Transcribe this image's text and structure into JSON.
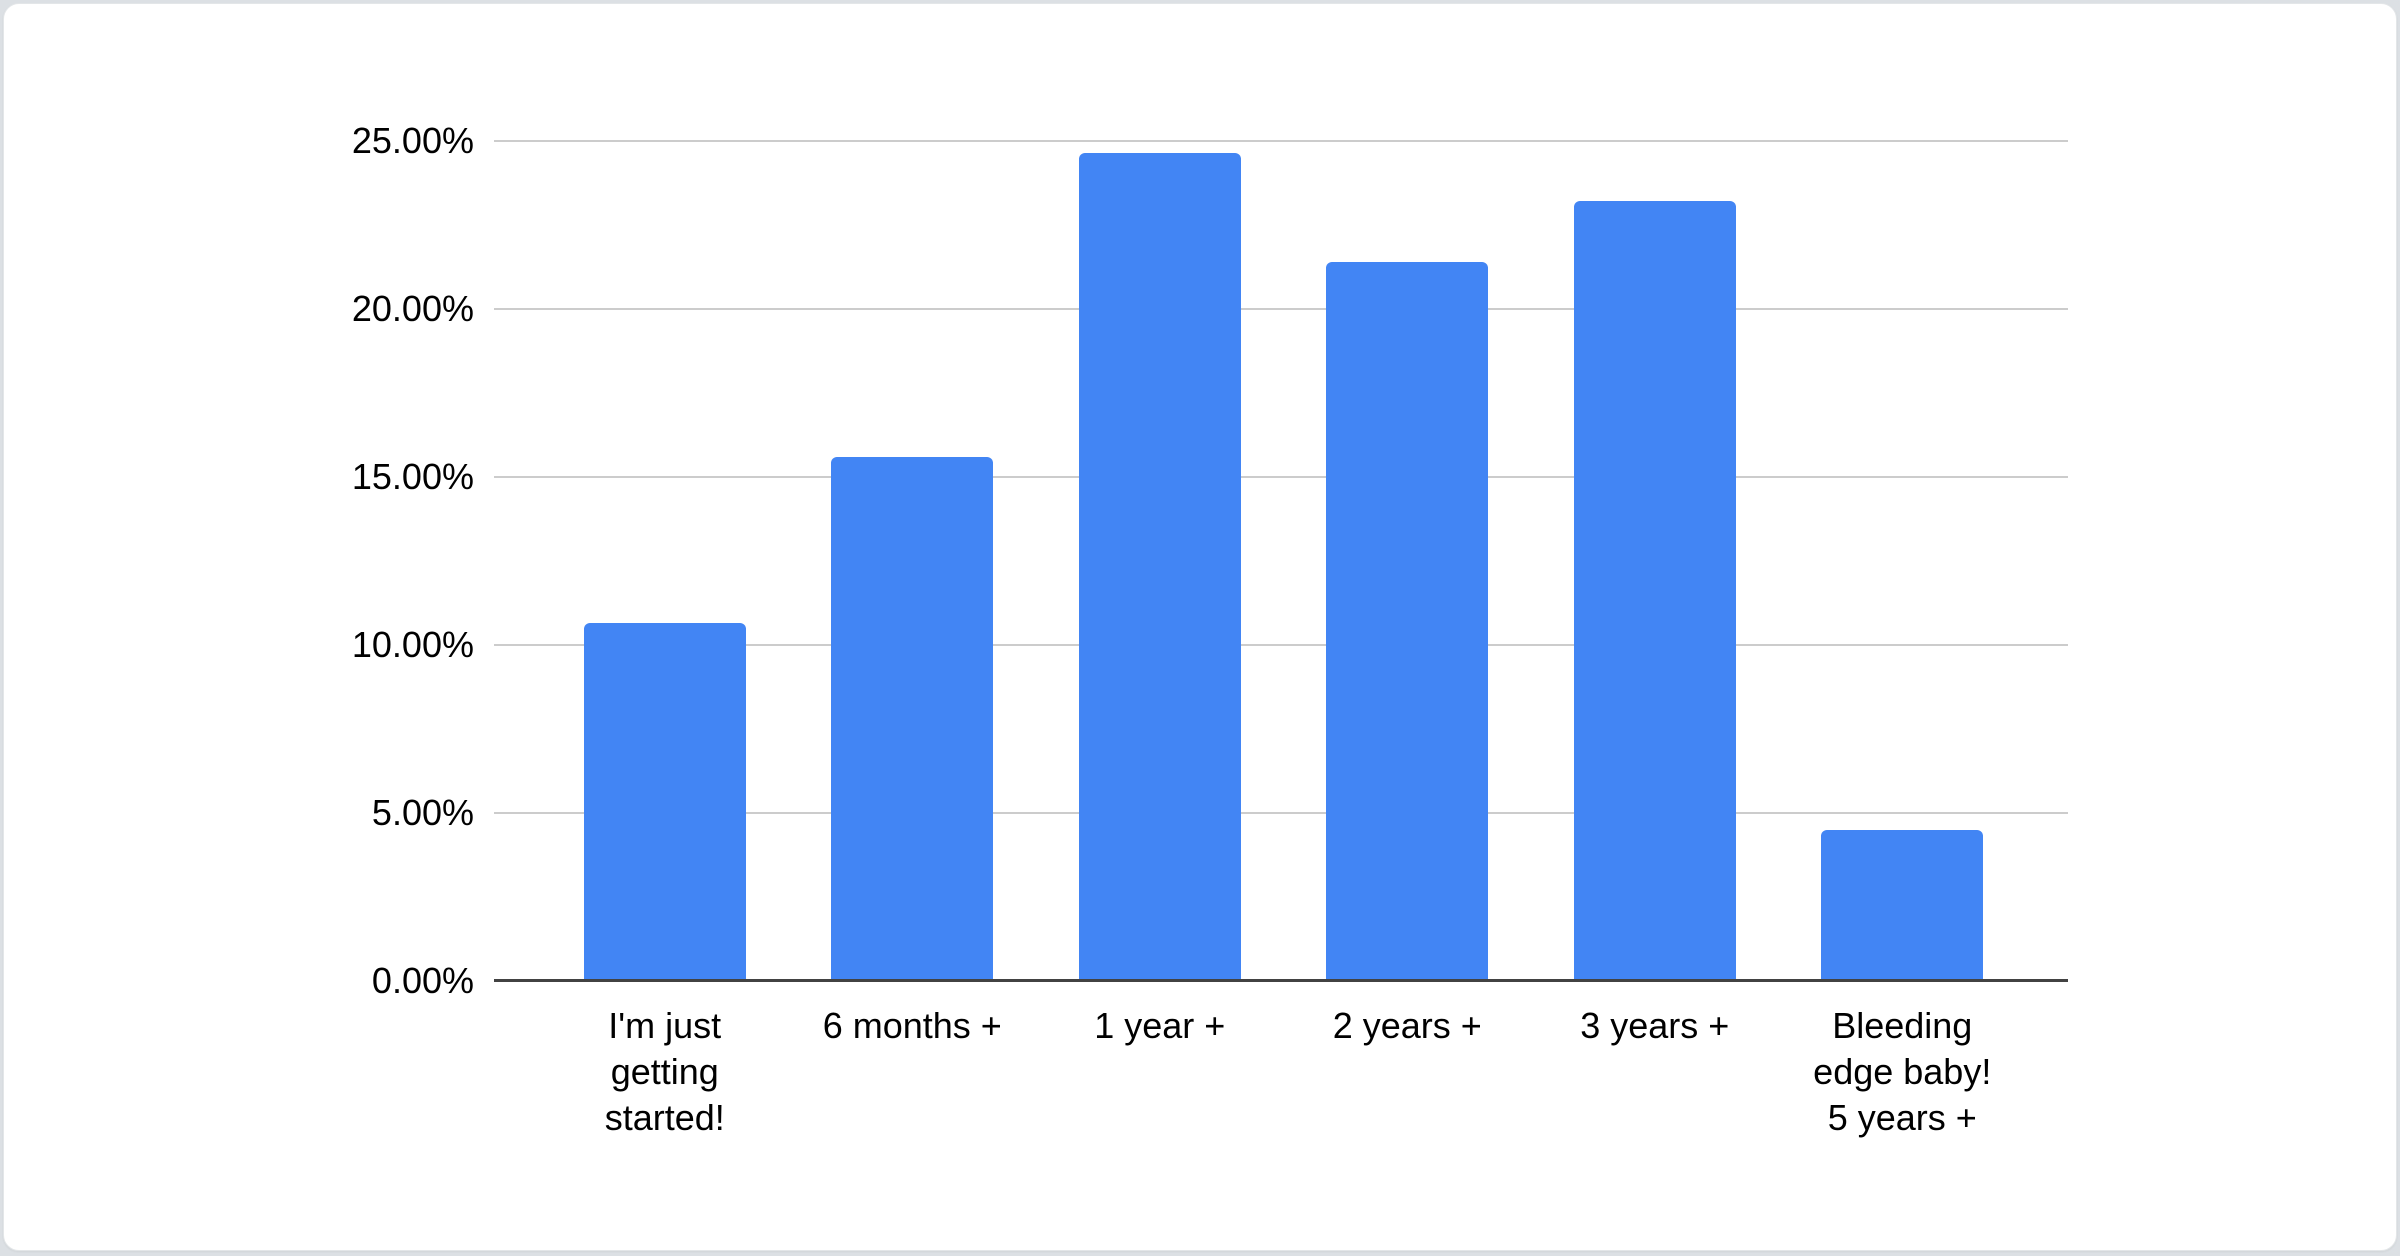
{
  "page": {
    "background_color": "#dce0e4",
    "card_color": "#ffffff"
  },
  "chart_data": {
    "type": "bar",
    "title": "",
    "legend": "none",
    "grid": true,
    "unit": "%",
    "categories": [
      "I'm just getting started!",
      "6 months +",
      "1 year +",
      "2 years +",
      "3 years +",
      "Bleeding edge baby! 5 years +"
    ],
    "categories_wrapped": [
      "I'm just\ngetting\nstarted!",
      "6 months +",
      "1 year +",
      "2 years +",
      "3 years +",
      "Bleeding\nedge baby!\n5 years +"
    ],
    "values": [
      10.65,
      15.6,
      24.65,
      21.4,
      23.2,
      4.5
    ],
    "y_axis": {
      "min": 0,
      "max": 25,
      "ticks": [
        {
          "value": 0,
          "label": "0.00%"
        },
        {
          "value": 5,
          "label": "5.00%"
        },
        {
          "value": 10,
          "label": "10.00%"
        },
        {
          "value": 15,
          "label": "15.00%"
        },
        {
          "value": 20,
          "label": "20.00%"
        },
        {
          "value": 25,
          "label": "25.00%"
        }
      ]
    },
    "bar_color": "#4285f4",
    "grid_color": "#cccccc",
    "axis_color": "#424242",
    "label_color": "#000000"
  }
}
